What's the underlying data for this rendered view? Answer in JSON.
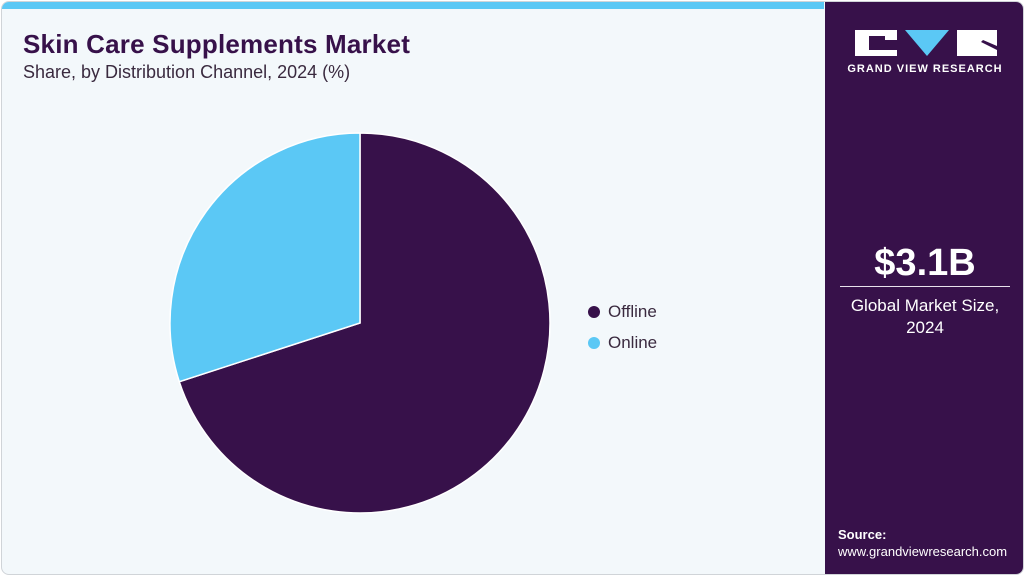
{
  "header": {
    "title": "Skin Care Supplements Market",
    "subtitle": "Share, by Distribution Channel, 2024 (%)"
  },
  "brand": {
    "name": "GRAND VIEW RESEARCH",
    "logo_icon": "gvr-logo-icon"
  },
  "side_panel": {
    "market_value": "$3.1B",
    "market_label": "Global Market Size, 2024",
    "source_title": "Source:",
    "source_url": "www.grandviewresearch.com"
  },
  "colors": {
    "primary": "#37114a",
    "accent": "#5bc8f5",
    "background": "#f3f8fb"
  },
  "legend": [
    {
      "label": "Offline",
      "color": "#37114a"
    },
    {
      "label": "Online",
      "color": "#5bc8f5"
    }
  ],
  "chart_data": {
    "type": "pie",
    "title": "Skin Care Supplements Market",
    "subtitle": "Share, by Distribution Channel, 2024 (%)",
    "categories": [
      "Offline",
      "Online"
    ],
    "values": [
      70,
      30
    ],
    "colors": [
      "#37114a",
      "#5bc8f5"
    ],
    "start_angle": "12 o'clock, Offline clockwise",
    "legend_position": "right",
    "data_labels": false
  }
}
